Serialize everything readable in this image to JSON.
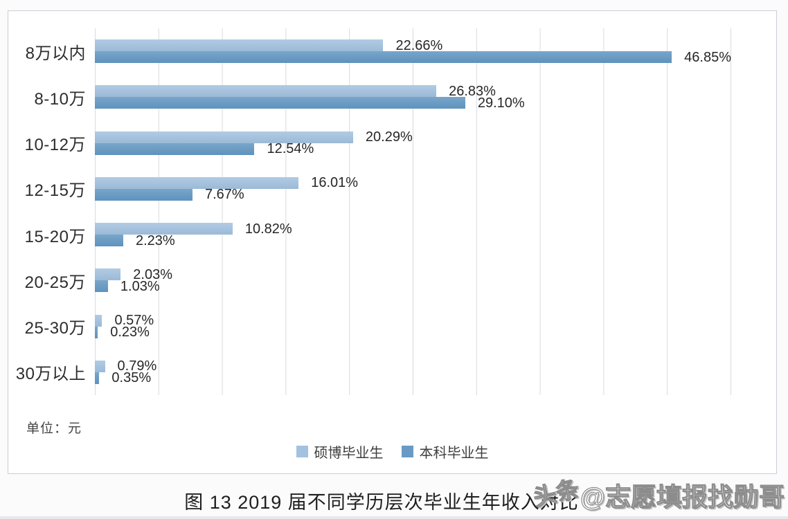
{
  "chart_data": {
    "type": "bar",
    "orientation": "horizontal",
    "title": "图 13  2019 届不同学历层次毕业生年收入对比",
    "unit": "单位：元",
    "categories": [
      "8万以内",
      "8-10万",
      "10-12万",
      "12-15万",
      "15-20万",
      "20-25万",
      "25-30万",
      "30万以上"
    ],
    "series": [
      {
        "name": "硕博毕业生",
        "values": [
          22.66,
          26.83,
          20.29,
          16.01,
          10.82,
          2.03,
          0.57,
          0.79
        ],
        "color_top": "#b1cbe3",
        "color_bottom": "#9bbad7",
        "legend_color": "#a3c2df"
      },
      {
        "name": "本科毕业生",
        "values": [
          46.85,
          29.1,
          12.54,
          7.67,
          2.23,
          1.03,
          0.23,
          0.35
        ],
        "color_top": "#79a6ca",
        "color_bottom": "#5e92be",
        "legend_color": "#689ac5"
      }
    ],
    "xlim": [
      0,
      50
    ],
    "gridline_interval": 5,
    "grid": true,
    "legend_position": "bottom-center",
    "value_label_format": "0.00%"
  },
  "watermark": {
    "prefix": "头条",
    "handle": "@志愿填报找勋哥"
  },
  "colors": {
    "gridline": "#d7dae0",
    "panel_border": "#c9cdd4",
    "text": "#2b2b2b"
  }
}
